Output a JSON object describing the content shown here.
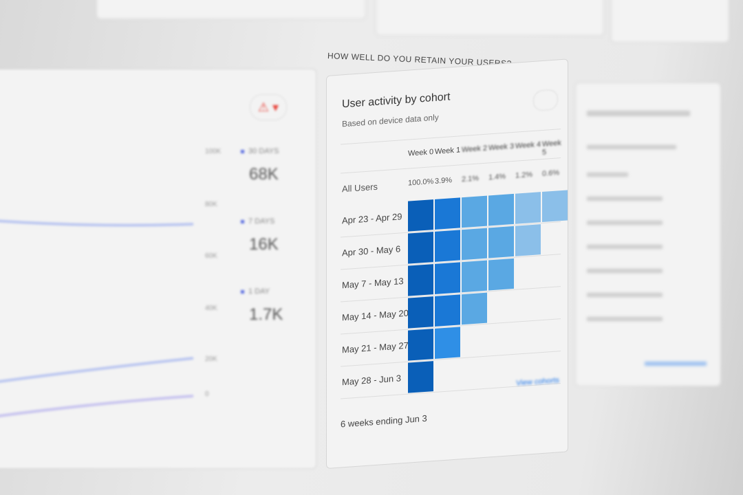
{
  "section_title": "HOW WELL DO YOU RETAIN YOUR USERS?",
  "cohort": {
    "title": "User activity by cohort",
    "subtitle": "Based on device data only",
    "weeks": [
      "Week 0",
      "Week 1",
      "Week 2",
      "Week 3",
      "Week 4",
      "Week 5"
    ],
    "all_users_label": "All Users",
    "all_users": [
      "100.0%",
      "3.9%",
      "2.1%",
      "1.4%",
      "1.2%",
      "0.6%"
    ],
    "rows": [
      {
        "label": "Apr 23 - Apr 29",
        "weeks_shown": 6
      },
      {
        "label": "Apr 30 - May 6",
        "weeks_shown": 5
      },
      {
        "label": "May 7 - May 13",
        "weeks_shown": 4
      },
      {
        "label": "May 14 - May 20",
        "weeks_shown": 3
      },
      {
        "label": "May 21 - May 27",
        "weeks_shown": 2
      },
      {
        "label": "May 28 - Jun 3",
        "weeks_shown": 1
      }
    ],
    "footer": "6 weeks ending Jun 3",
    "link": "View cohorts",
    "colors": [
      "#0a5fb8",
      "#1a78d6",
      "#5aa8e3",
      "#5aa8e3",
      "#8bbfe9",
      "#8bbfe9"
    ]
  },
  "active_users": {
    "y_ticks": [
      "100K",
      "80K",
      "60K",
      "40K",
      "20K",
      "0"
    ],
    "metrics": [
      {
        "label": "30 DAYS",
        "value": "68K"
      },
      {
        "label": "7 DAYS",
        "value": "16K"
      },
      {
        "label": "1 DAY",
        "value": "1.7K"
      }
    ]
  }
}
